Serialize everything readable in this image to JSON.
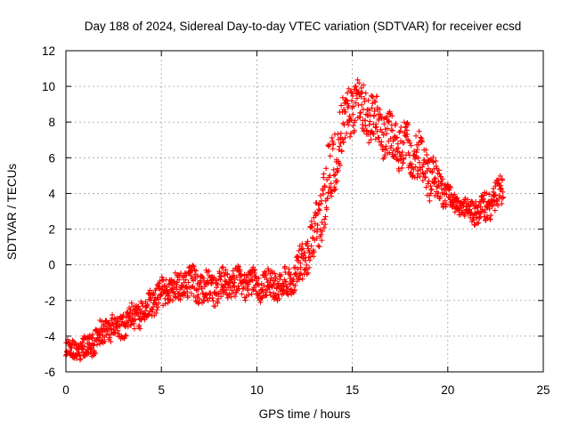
{
  "chart_data": {
    "type": "scatter",
    "title": "Day 188 of 2024, Sidereal Day-to-day VTEC variation (SDTVAR) for receiver ecsd",
    "xlabel": "GPS time / hours",
    "ylabel": "SDTVAR / TECUs",
    "xlim": [
      0,
      25
    ],
    "ylim": [
      -6,
      12
    ],
    "xticks": [
      0,
      5,
      10,
      15,
      20,
      25
    ],
    "yticks": [
      -6,
      -4,
      -2,
      0,
      2,
      4,
      6,
      8,
      10,
      12
    ],
    "grid": true,
    "marker": "+",
    "color": "#ff0000",
    "series": [
      {
        "name": "SDTVAR",
        "trend": [
          [
            0.0,
            -4.6
          ],
          [
            0.5,
            -4.8
          ],
          [
            1.0,
            -4.7
          ],
          [
            1.5,
            -4.3
          ],
          [
            2.0,
            -3.7
          ],
          [
            2.5,
            -3.5
          ],
          [
            3.0,
            -3.3
          ],
          [
            3.5,
            -2.9
          ],
          [
            4.0,
            -2.6
          ],
          [
            4.5,
            -2.1
          ],
          [
            5.0,
            -1.7
          ],
          [
            5.5,
            -1.4
          ],
          [
            6.0,
            -1.2
          ],
          [
            6.5,
            -1.0
          ],
          [
            7.0,
            -1.3
          ],
          [
            7.5,
            -1.4
          ],
          [
            8.0,
            -1.2
          ],
          [
            8.5,
            -1.0
          ],
          [
            9.0,
            -1.1
          ],
          [
            9.5,
            -1.2
          ],
          [
            10.0,
            -1.1
          ],
          [
            10.5,
            -1.2
          ],
          [
            11.0,
            -1.1
          ],
          [
            11.5,
            -1.0
          ],
          [
            12.0,
            -0.6
          ],
          [
            12.5,
            0.4
          ],
          [
            13.0,
            1.4
          ],
          [
            13.5,
            3.6
          ],
          [
            14.0,
            5.8
          ],
          [
            14.5,
            8.0
          ],
          [
            15.0,
            9.0
          ],
          [
            15.5,
            8.8
          ],
          [
            16.0,
            8.3
          ],
          [
            16.5,
            7.6
          ],
          [
            17.0,
            7.1
          ],
          [
            17.5,
            6.7
          ],
          [
            18.0,
            6.4
          ],
          [
            18.5,
            6.0
          ],
          [
            19.0,
            5.2
          ],
          [
            19.5,
            4.4
          ],
          [
            20.0,
            3.9
          ],
          [
            20.5,
            3.3
          ],
          [
            21.0,
            3.1
          ],
          [
            21.5,
            3.0
          ],
          [
            22.0,
            3.3
          ],
          [
            22.5,
            3.7
          ],
          [
            22.9,
            4.3
          ]
        ],
        "spread": [
          [
            0.0,
            0.5
          ],
          [
            2.0,
            0.7
          ],
          [
            5.0,
            0.8
          ],
          [
            7.0,
            0.9
          ],
          [
            10.0,
            0.8
          ],
          [
            12.0,
            0.8
          ],
          [
            13.0,
            1.4
          ],
          [
            14.0,
            2.2
          ],
          [
            15.0,
            1.3
          ],
          [
            16.0,
            1.4
          ],
          [
            17.0,
            1.2
          ],
          [
            18.0,
            1.3
          ],
          [
            19.0,
            1.3
          ],
          [
            20.0,
            0.6
          ],
          [
            21.0,
            0.5
          ],
          [
            22.0,
            0.9
          ],
          [
            22.9,
            0.8
          ]
        ]
      }
    ]
  }
}
